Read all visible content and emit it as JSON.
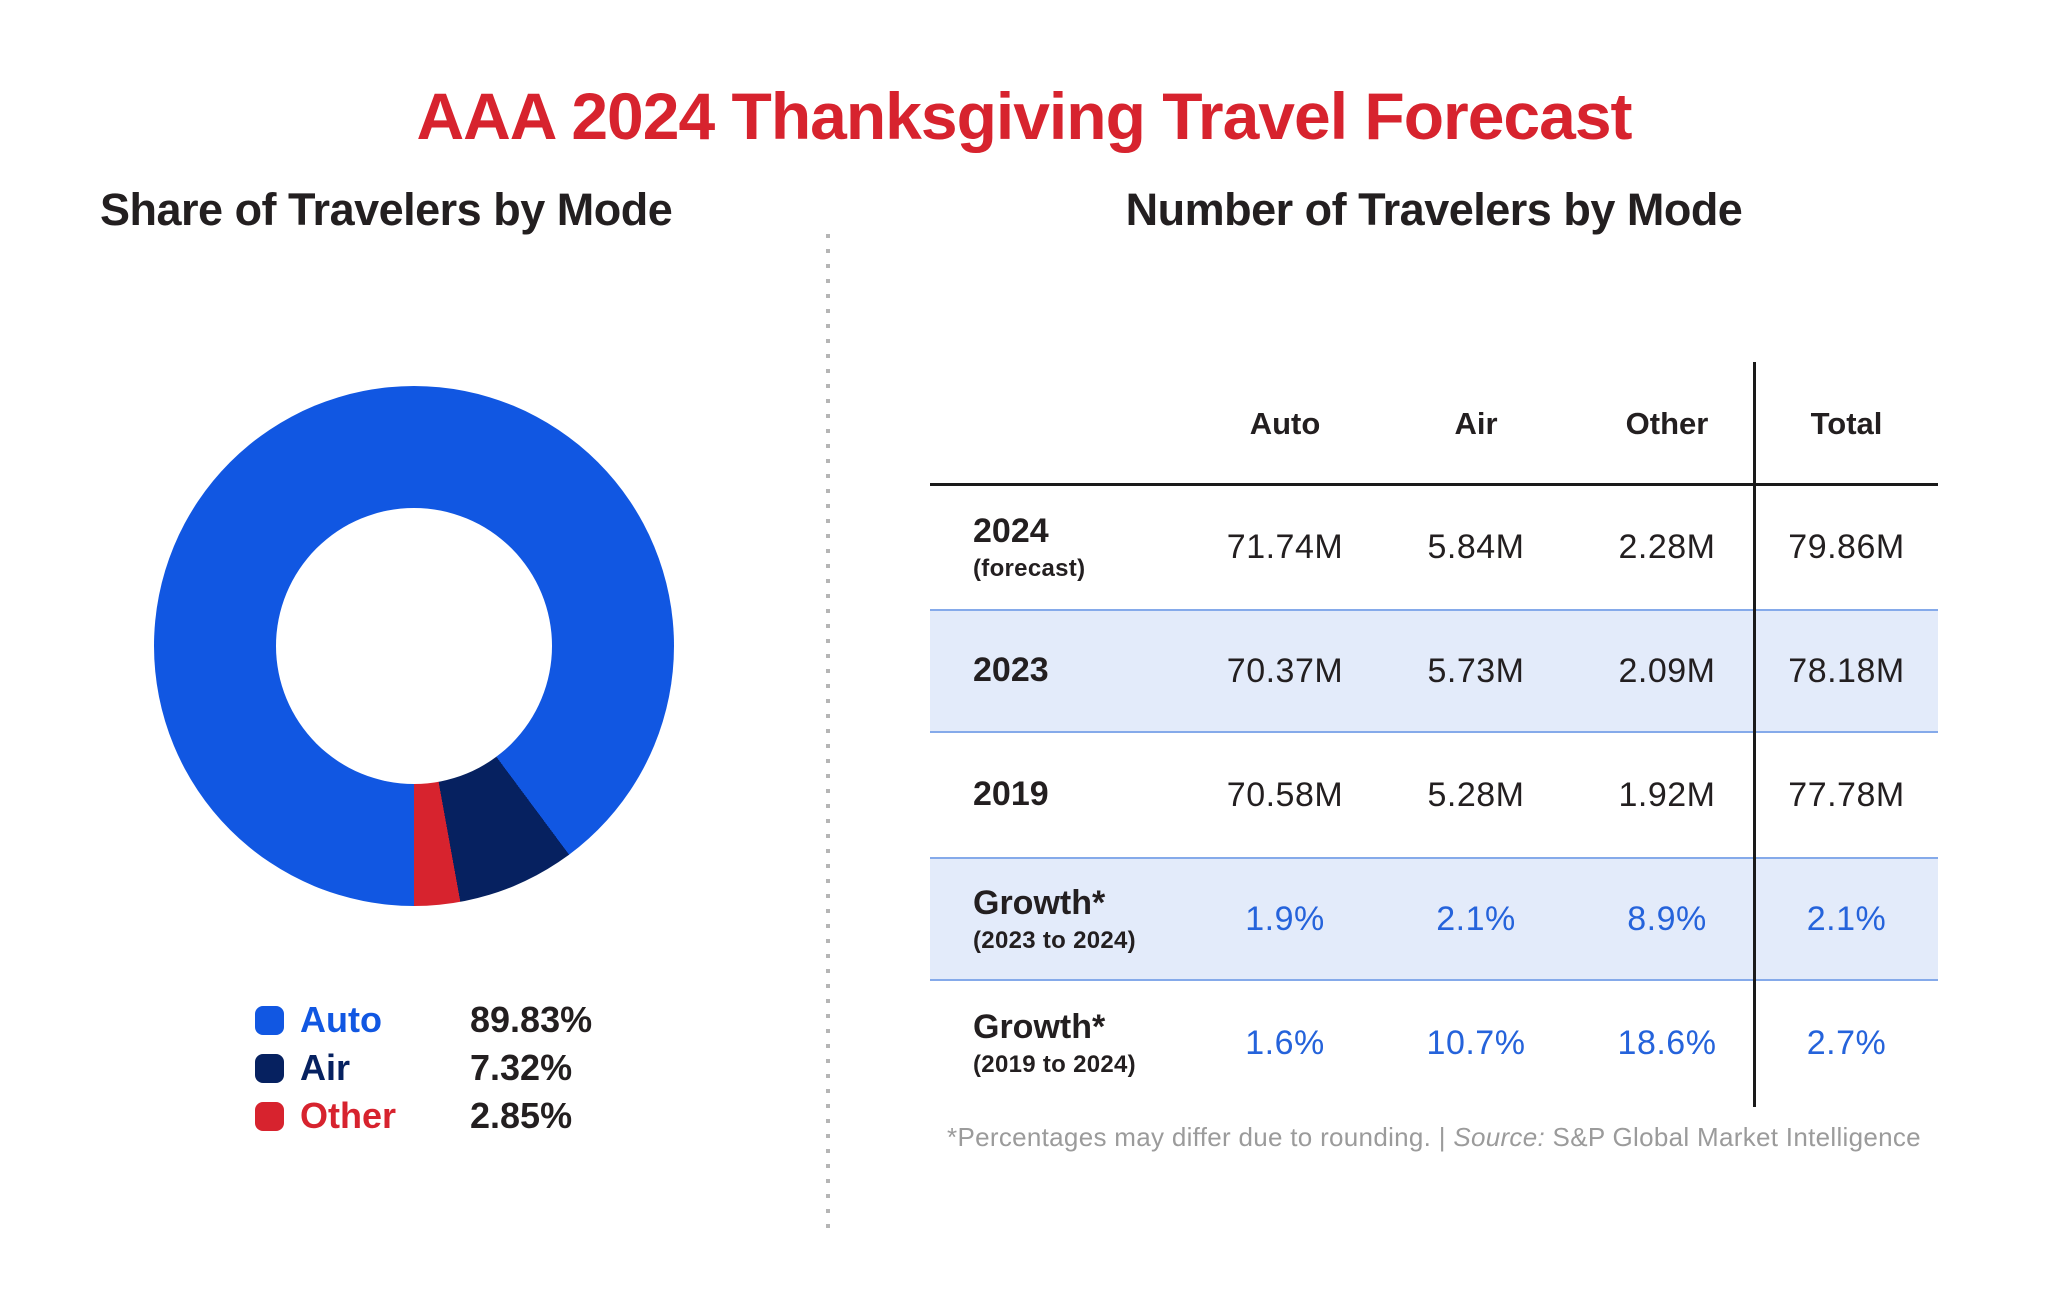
{
  "title": "AAA 2024 Thanksgiving Travel Forecast",
  "colors": {
    "red": "#D7232E",
    "blue": "#1157E2",
    "navy": "#062160",
    "band": "#E3EBFA",
    "band-border": "#85AAEA",
    "growth-blue": "#2563DB",
    "dark": "#231F20",
    "gray": "#9B9B9B",
    "divider": "#B5B5B5",
    "line": "#1A1A1A"
  },
  "donut_section": {
    "heading": "Share of Travelers by Mode",
    "legend": [
      {
        "label": "Auto",
        "value": "89.83%",
        "color": "#1157E2"
      },
      {
        "label": "Air",
        "value": "7.32%",
        "color": "#062160"
      },
      {
        "label": "Other",
        "value": "2.85%",
        "color": "#D7232E"
      }
    ]
  },
  "table_section": {
    "heading": "Number of Travelers by Mode",
    "columns": [
      "Auto",
      "Air",
      "Other",
      "Total"
    ],
    "rows": [
      {
        "label": "2024",
        "sublabel": "(forecast)",
        "values": [
          "71.74M",
          "5.84M",
          "2.28M",
          "79.86M"
        ],
        "highlight": false,
        "value_style": "dark"
      },
      {
        "label": "2023",
        "sublabel": "",
        "values": [
          "70.37M",
          "5.73M",
          "2.09M",
          "78.18M"
        ],
        "highlight": true,
        "value_style": "dark"
      },
      {
        "label": "2019",
        "sublabel": "",
        "values": [
          "70.58M",
          "5.28M",
          "1.92M",
          "77.78M"
        ],
        "highlight": false,
        "value_style": "dark"
      },
      {
        "label": "Growth*",
        "sublabel": "(2023 to 2024)",
        "values": [
          "1.9%",
          "2.1%",
          "8.9%",
          "2.1%"
        ],
        "highlight": true,
        "value_style": "blue"
      },
      {
        "label": "Growth*",
        "sublabel": "(2019 to 2024)",
        "values": [
          "1.6%",
          "10.7%",
          "18.6%",
          "2.7%"
        ],
        "highlight": false,
        "value_style": "blue"
      }
    ],
    "footnote_plain": "*Percentages may differ due to rounding. | ",
    "footnote_source_label": "Source:",
    "footnote_source_text": " S&P Global Market Intelligence"
  },
  "chart_data": [
    {
      "type": "pie",
      "title": "Share of Travelers by Mode",
      "categories": [
        "Auto",
        "Air",
        "Other"
      ],
      "values": [
        89.83,
        7.32,
        2.85
      ],
      "unit": "%",
      "colors": [
        "#1157E2",
        "#062160",
        "#D7232E"
      ],
      "donut": true,
      "start_angle_deg": 180,
      "direction": "clockwise",
      "legend_position": "bottom-left"
    },
    {
      "type": "table",
      "title": "Number of Travelers by Mode",
      "columns": [
        "",
        "Auto",
        "Air",
        "Other",
        "Total"
      ],
      "rows": [
        [
          "2024 (forecast)",
          "71.74M",
          "5.84M",
          "2.28M",
          "79.86M"
        ],
        [
          "2023",
          "70.37M",
          "5.73M",
          "2.09M",
          "78.18M"
        ],
        [
          "2019",
          "70.58M",
          "5.28M",
          "1.92M",
          "77.78M"
        ],
        [
          "Growth* (2023 to 2024)",
          "1.9%",
          "2.1%",
          "8.9%",
          "2.1%"
        ],
        [
          "Growth* (2019 to 2024)",
          "1.6%",
          "10.7%",
          "18.6%",
          "2.7%"
        ]
      ],
      "notes": "*Percentages may differ due to rounding. | Source: S&P Global Market Intelligence"
    }
  ]
}
